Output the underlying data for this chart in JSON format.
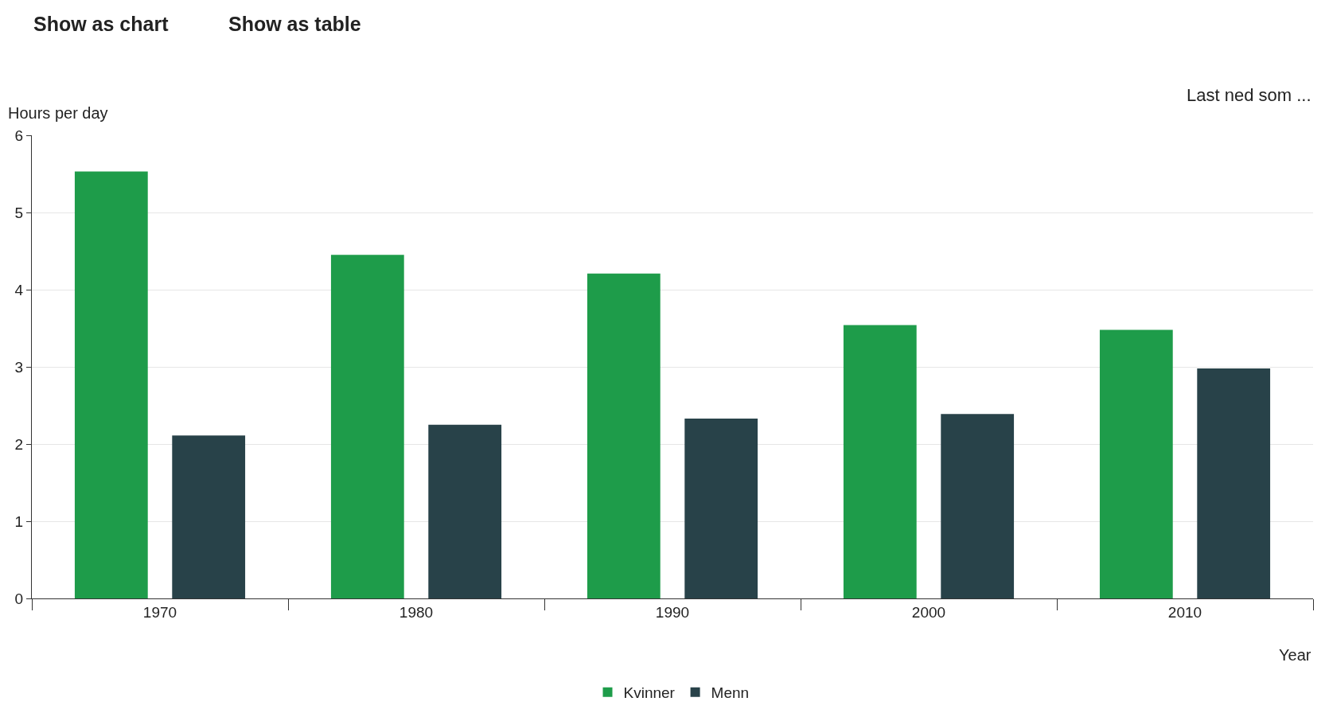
{
  "chart_data": {
    "type": "bar",
    "xlabel": "Year",
    "ylabel": "Hours per day",
    "categories": [
      "1970",
      "1980",
      "1990",
      "2000",
      "2010"
    ],
    "series": [
      {
        "name": "Kvinner",
        "color": "#1e9c4a",
        "values": [
          5.53,
          4.45,
          4.21,
          3.54,
          3.48
        ]
      },
      {
        "name": "Menn",
        "color": "#284249",
        "values": [
          2.11,
          2.25,
          2.33,
          2.39,
          2.98
        ]
      }
    ],
    "ylim": [
      0,
      6
    ],
    "yticks": [
      0,
      1,
      2,
      3,
      4,
      5,
      6
    ],
    "grid": "y",
    "legend": "bottom",
    "annotations": [
      "Show as chart",
      "Show as table",
      "Last ned som ..."
    ]
  }
}
